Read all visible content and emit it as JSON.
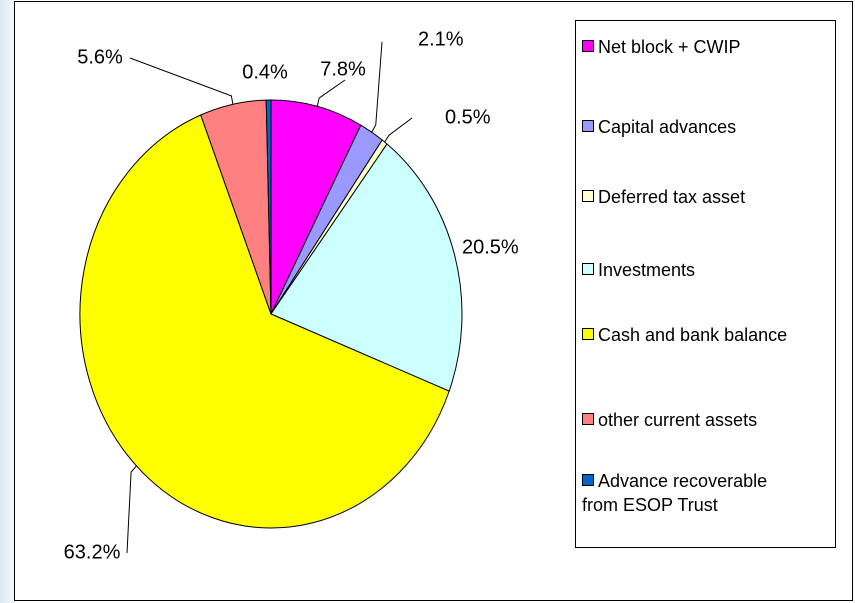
{
  "chart_data": {
    "type": "pie",
    "categories": [
      "Net block + CWIP",
      "Capital advances",
      "Deferred tax asset",
      "Investments",
      "Cash and bank balance",
      "other current assets",
      "Advance recoverable from ESOP Trust"
    ],
    "values": [
      7.8,
      2.1,
      0.5,
      20.5,
      63.2,
      5.6,
      0.4
    ],
    "value_labels": [
      "7.8%",
      "2.1%",
      "0.5%",
      "20.5%",
      "63.2%",
      "5.6%",
      "0.4%"
    ],
    "colors": [
      "#ff00ff",
      "#9999ff",
      "#ffffcc",
      "#ccffff",
      "#ffff00",
      "#ff8080",
      "#0066cc"
    ],
    "legend": "right"
  }
}
